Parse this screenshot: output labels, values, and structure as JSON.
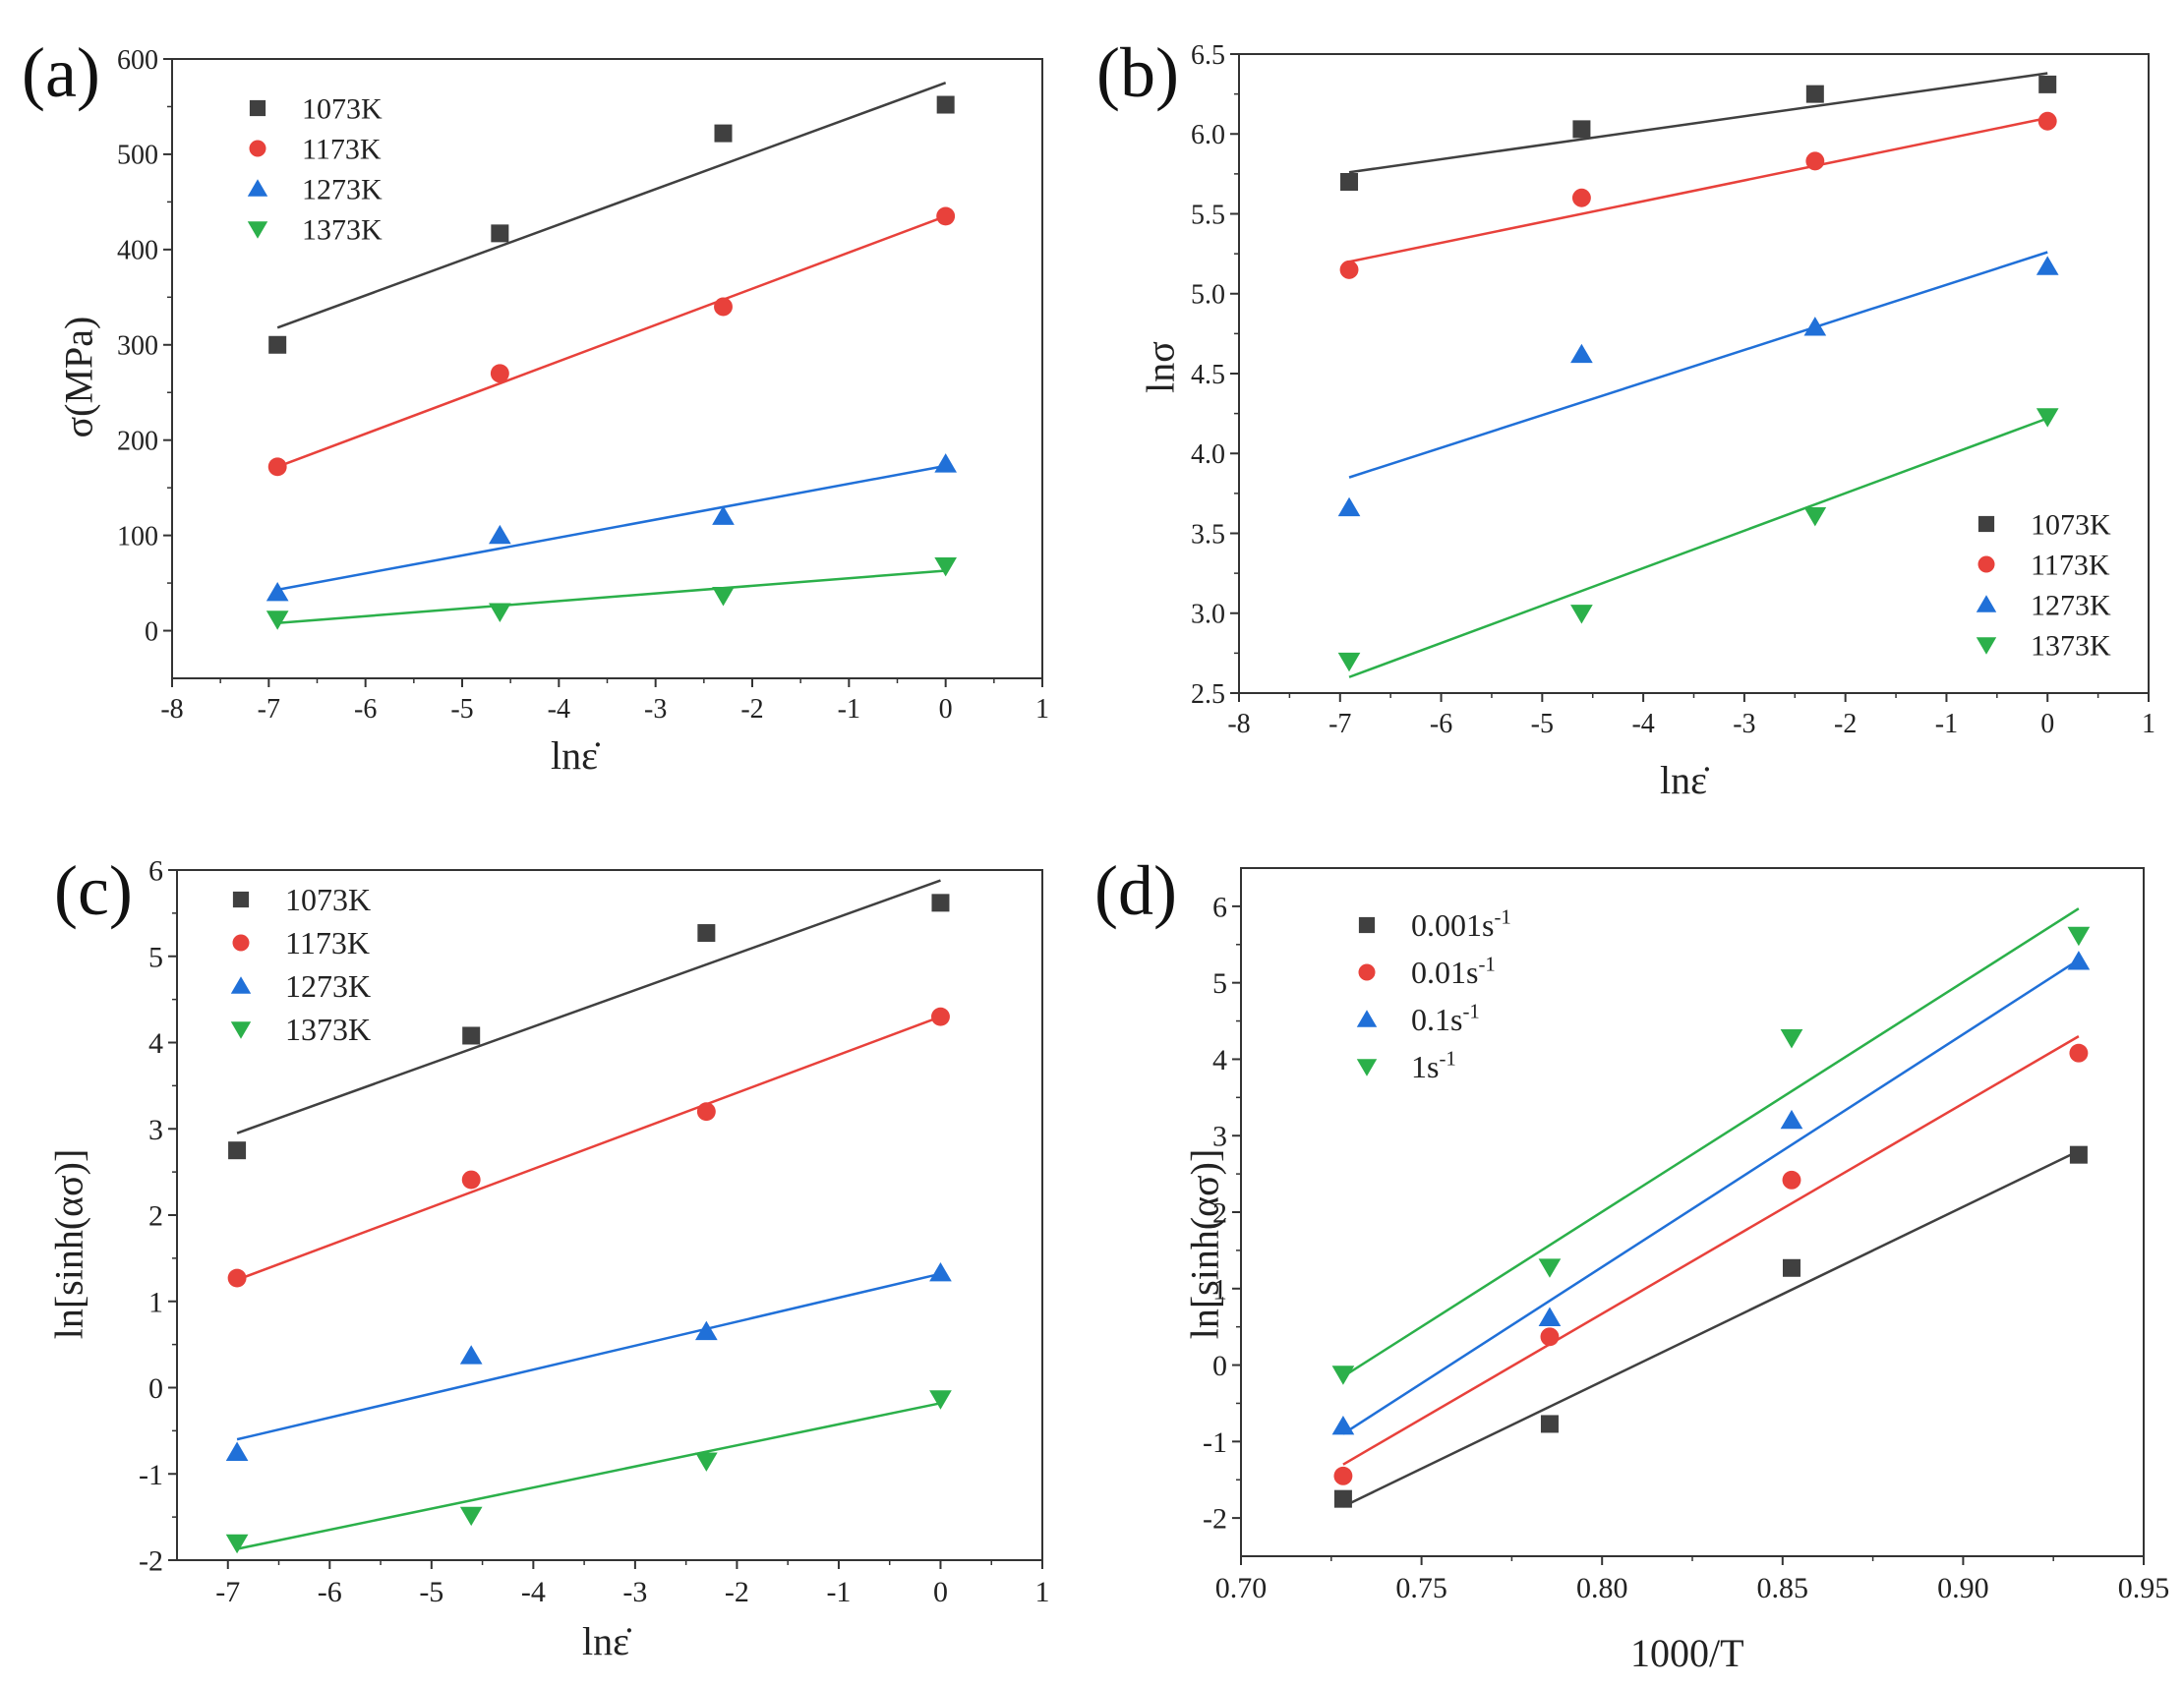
{
  "chart_data": [
    {
      "type": "scatter",
      "panel_label": "(a)",
      "xlabel": "lnε̇",
      "ylabel": "σ(MPa)",
      "xlim": [
        -8,
        1
      ],
      "ylim": [
        -50,
        600
      ],
      "xticks": [
        -8,
        -7,
        -6,
        -5,
        -4,
        -3,
        -2,
        -1,
        0,
        1
      ],
      "yticks": [
        0,
        100,
        200,
        300,
        400,
        500,
        600
      ],
      "legend_position": "top-left",
      "x": [
        -6.91,
        -4.61,
        -2.3,
        0
      ],
      "series": [
        {
          "name": "1073K",
          "marker": "square",
          "color": "#404040",
          "values": [
            300,
            417,
            522,
            552
          ],
          "fit": [
            [
              -6.91,
              318
            ],
            [
              0,
              575
            ]
          ]
        },
        {
          "name": "1173K",
          "marker": "circle",
          "color": "#e8413b",
          "values": [
            172,
            270,
            340,
            435
          ],
          "fit": [
            [
              -6.91,
              172
            ],
            [
              0,
              435
            ]
          ]
        },
        {
          "name": "1273K",
          "marker": "triangle-up",
          "color": "#2070d8",
          "values": [
            40,
            100,
            120,
            175
          ],
          "fit": [
            [
              -6.91,
              43
            ],
            [
              0,
              173
            ]
          ]
        },
        {
          "name": "1373K",
          "marker": "triangle-down",
          "color": "#2bb04a",
          "values": [
            12,
            20,
            37,
            68
          ],
          "fit": [
            [
              -6.91,
              8
            ],
            [
              0,
              63
            ]
          ]
        }
      ]
    },
    {
      "type": "scatter",
      "panel_label": "(b)",
      "xlabel": "lnε̇",
      "ylabel": "lnσ",
      "xlim": [
        -8,
        1
      ],
      "ylim": [
        2.5,
        6.5
      ],
      "xticks": [
        -8,
        -7,
        -6,
        -5,
        -4,
        -3,
        -2,
        -1,
        0,
        1
      ],
      "yticks": [
        2.5,
        3.0,
        3.5,
        4.0,
        4.5,
        5.0,
        5.5,
        6.0,
        6.5
      ],
      "ytick_labels": [
        "2.5",
        "3.0",
        "3.5",
        "4.0",
        "4.5",
        "5.0",
        "5.5",
        "6.0",
        "6.5"
      ],
      "legend_position": "bottom-right",
      "x": [
        -6.91,
        -4.61,
        -2.3,
        0
      ],
      "series": [
        {
          "name": "1073K",
          "marker": "square",
          "color": "#404040",
          "values": [
            5.7,
            6.03,
            6.25,
            6.31
          ],
          "fit": [
            [
              -6.91,
              5.76
            ],
            [
              0,
              6.38
            ]
          ]
        },
        {
          "name": "1173K",
          "marker": "circle",
          "color": "#e8413b",
          "values": [
            5.15,
            5.6,
            5.83,
            6.08
          ],
          "fit": [
            [
              -6.91,
              5.2
            ],
            [
              0,
              6.1
            ]
          ]
        },
        {
          "name": "1273K",
          "marker": "triangle-up",
          "color": "#2070d8",
          "values": [
            3.66,
            4.62,
            4.79,
            5.17
          ],
          "fit": [
            [
              -6.91,
              3.85
            ],
            [
              0,
              5.26
            ]
          ]
        },
        {
          "name": "1373K",
          "marker": "triangle-down",
          "color": "#2bb04a",
          "values": [
            2.7,
            3.0,
            3.61,
            4.23
          ],
          "fit": [
            [
              -6.91,
              2.6
            ],
            [
              0,
              4.22
            ]
          ]
        }
      ]
    },
    {
      "type": "scatter",
      "panel_label": "(c)",
      "xlabel": "lnε̇",
      "ylabel": "ln[sinh(ασ)]",
      "xlim": [
        -7.5,
        1
      ],
      "ylim": [
        -2,
        6
      ],
      "xticks": [
        -7,
        -6,
        -5,
        -4,
        -3,
        -2,
        -1,
        0,
        1
      ],
      "yticks": [
        -2,
        -1,
        0,
        1,
        2,
        3,
        4,
        5,
        6
      ],
      "legend_position": "top-left",
      "x": [
        -6.91,
        -4.61,
        -2.3,
        0
      ],
      "series": [
        {
          "name": "1073K",
          "marker": "square",
          "color": "#404040",
          "values": [
            2.75,
            4.08,
            5.27,
            5.62
          ],
          "fit": [
            [
              -6.91,
              2.95
            ],
            [
              0,
              5.88
            ]
          ]
        },
        {
          "name": "1173K",
          "marker": "circle",
          "color": "#e8413b",
          "values": [
            1.27,
            2.41,
            3.2,
            4.3
          ],
          "fit": [
            [
              -6.91,
              1.25
            ],
            [
              0,
              4.3
            ]
          ]
        },
        {
          "name": "1273K",
          "marker": "triangle-up",
          "color": "#2070d8",
          "values": [
            -0.75,
            0.37,
            0.65,
            1.33
          ],
          "fit": [
            [
              -6.91,
              -0.6
            ],
            [
              0,
              1.32
            ]
          ]
        },
        {
          "name": "1373K",
          "marker": "triangle-down",
          "color": "#2bb04a",
          "values": [
            -1.8,
            -1.48,
            -0.85,
            -0.13
          ],
          "fit": [
            [
              -6.91,
              -1.87
            ],
            [
              0,
              -0.18
            ]
          ]
        }
      ]
    },
    {
      "type": "scatter",
      "panel_label": "(d)",
      "xlabel": "1000/T",
      "ylabel": "ln[sinh(ασ)]",
      "xlim": [
        0.7,
        0.95
      ],
      "ylim": [
        -2.5,
        6.5
      ],
      "xticks": [
        0.7,
        0.75,
        0.8,
        0.85,
        0.9,
        0.95
      ],
      "xtick_labels": [
        "0.70",
        "0.75",
        "0.80",
        "0.85",
        "0.90",
        "0.95"
      ],
      "yticks": [
        -2,
        -1,
        0,
        1,
        2,
        3,
        4,
        5,
        6
      ],
      "legend_position": "top-left",
      "x": [
        0.7283,
        0.7855,
        0.8525,
        0.932
      ],
      "series": [
        {
          "name": "0.001s",
          "sup": "-1",
          "marker": "square",
          "color": "#404040",
          "values": [
            -1.75,
            -0.77,
            1.27,
            2.75
          ],
          "fit": [
            [
              0.7283,
              -1.85
            ],
            [
              0.932,
              2.8
            ]
          ]
        },
        {
          "name": "0.01s",
          "sup": "-1",
          "marker": "circle",
          "color": "#e8413b",
          "values": [
            -1.45,
            0.37,
            2.42,
            4.08
          ],
          "fit": [
            [
              0.7283,
              -1.3
            ],
            [
              0.932,
              4.3
            ]
          ]
        },
        {
          "name": "0.1s",
          "sup": "-1",
          "marker": "triangle-up",
          "color": "#2070d8",
          "values": [
            -0.8,
            0.62,
            3.2,
            5.28
          ],
          "fit": [
            [
              0.7283,
              -0.9
            ],
            [
              0.932,
              5.3
            ]
          ]
        },
        {
          "name": "1s",
          "sup": "-1",
          "marker": "triangle-down",
          "color": "#2bb04a",
          "values": [
            -0.12,
            1.28,
            4.28,
            5.62
          ],
          "fit": [
            [
              0.7283,
              -0.15
            ],
            [
              0.932,
              5.97
            ]
          ]
        }
      ]
    }
  ]
}
